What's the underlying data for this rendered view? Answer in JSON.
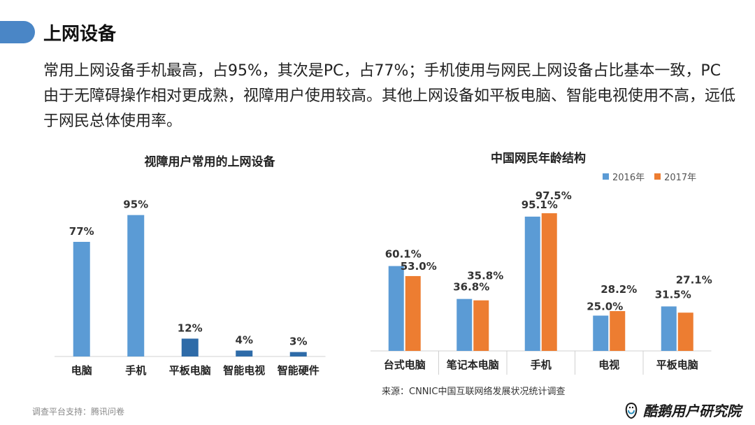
{
  "header": {
    "title": "上网设备",
    "body": "常用上网设备手机最高，占95%，其次是PC，占77%；手机使用与网民上网设备占比基本一致，PC由于无障碍操作相对更成熟，视障用户使用较高。其他上网设备如平板电脑、智能电视使用不高，远低于网民总体使用率。"
  },
  "colors": {
    "accent": "#4a86c6",
    "bar_light": "#5b9bd5",
    "bar_dark": "#2e6ba8",
    "series_2016": "#5b9bd5",
    "series_2017": "#ed7d31"
  },
  "chart_data": [
    {
      "type": "bar",
      "title": "视障用户常用的上网设备",
      "categories": [
        "电脑",
        "手机",
        "平板电脑",
        "智能电视",
        "智能硬件"
      ],
      "values": [
        77,
        95,
        12,
        4,
        3
      ],
      "data_labels": [
        "77%",
        "95%",
        "12%",
        "4%",
        "3%"
      ],
      "ylim": [
        0,
        100
      ],
      "grid": false
    },
    {
      "type": "bar",
      "title": "中国网民年龄结构",
      "categories": [
        "台式电脑",
        "笔记本电脑",
        "手机",
        "电视",
        "平板电脑"
      ],
      "series": [
        {
          "name": "2016年",
          "values": [
            60.1,
            36.8,
            95.1,
            25.0,
            31.5
          ],
          "labels": [
            "60.1%",
            "36.8%",
            "95.1%",
            "25.0%",
            "31.5%"
          ]
        },
        {
          "name": "2017年",
          "values": [
            53.0,
            35.8,
            97.5,
            28.2,
            27.1
          ],
          "labels": [
            "53.0%",
            "35.8%",
            "97.5%",
            "28.2%",
            "27.1%"
          ]
        }
      ],
      "ylim": [
        0,
        100
      ],
      "legend": "top-right",
      "grid": false
    }
  ],
  "footer": {
    "platform": "调查平台支持：腾讯问卷",
    "source": "来源：CNNIC中国互联网络发展状况统计调查",
    "brand": "酷鹅用户研究院"
  }
}
